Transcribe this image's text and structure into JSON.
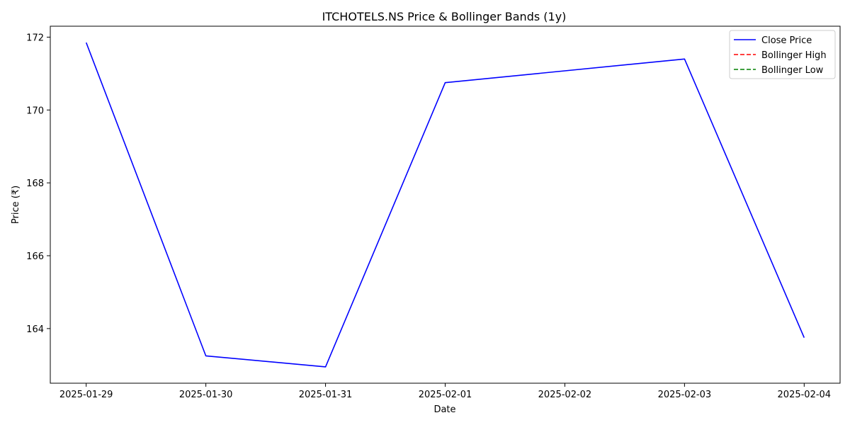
{
  "chart_data": {
    "type": "line",
    "title": "ITCHOTELS.NS Price & Bollinger Bands (1y)",
    "xlabel": "Date",
    "ylabel": "Price (₹)",
    "x": [
      "2025-01-29",
      "2025-01-30",
      "2025-01-31",
      "2025-02-01",
      "2025-02-02",
      "2025-02-03",
      "2025-02-04"
    ],
    "x_ticks": [
      "2025-01-29",
      "2025-01-30",
      "2025-01-31",
      "2025-02-01",
      "2025-02-02",
      "2025-02-03",
      "2025-02-04"
    ],
    "y_ticks": [
      164,
      166,
      168,
      170,
      172
    ],
    "ylim": [
      162.5,
      172.3
    ],
    "grid": false,
    "legend_position": "upper right",
    "series": [
      {
        "name": "Close Price",
        "color": "#0000ff",
        "style": "solid",
        "points": [
          {
            "x": "2025-01-29",
            "y": 171.85
          },
          {
            "x": "2025-01-30",
            "y": 163.25
          },
          {
            "x": "2025-01-31",
            "y": 162.95
          },
          {
            "x": "2025-02-01",
            "y": 170.75
          },
          {
            "x": "2025-02-03",
            "y": 171.4
          },
          {
            "x": "2025-02-04",
            "y": 163.75
          }
        ]
      },
      {
        "name": "Bollinger High",
        "color": "#ff0000",
        "style": "dashed",
        "points": []
      },
      {
        "name": "Bollinger Low",
        "color": "#008000",
        "style": "dashed",
        "points": []
      }
    ]
  }
}
